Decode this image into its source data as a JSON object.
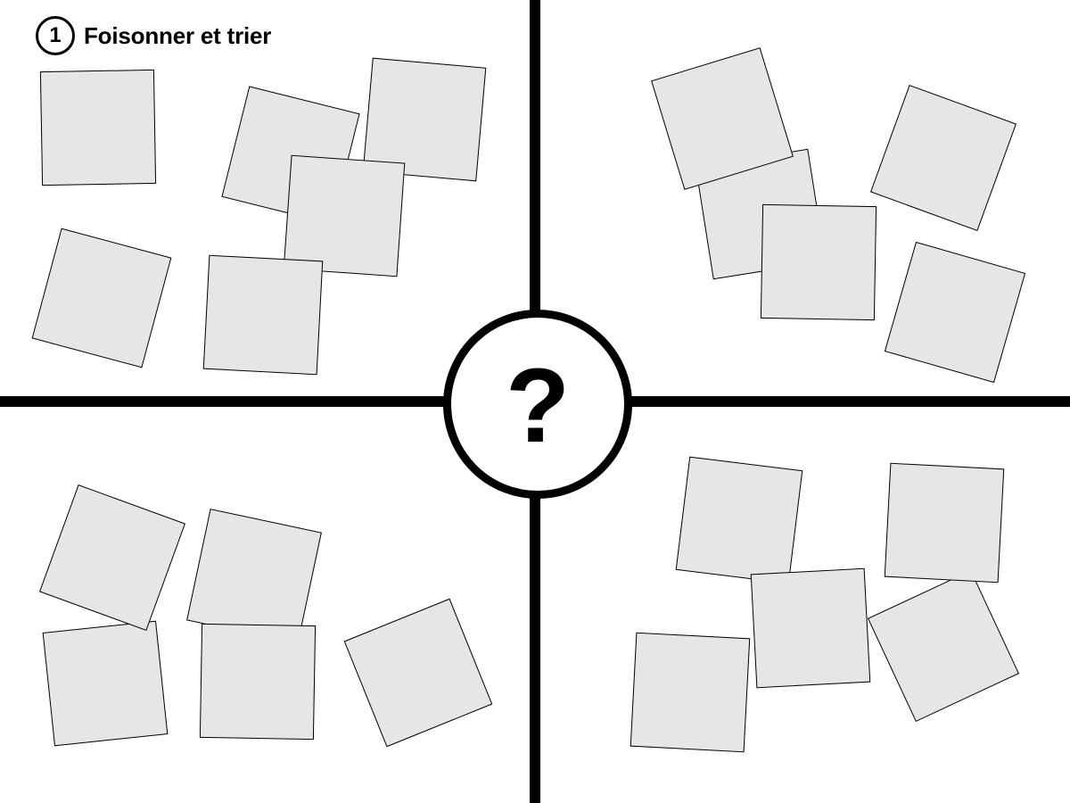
{
  "board": {
    "step_number": "1",
    "step_title": "Foisonner et trier",
    "center_symbol": "?"
  },
  "colors": {
    "note_fill": "#e6e6e6",
    "line": "#000000",
    "background": "#ffffff"
  },
  "quadrants": [
    {
      "id": "top-left",
      "note_count": 6
    },
    {
      "id": "top-right",
      "note_count": 5
    },
    {
      "id": "bottom-left",
      "note_count": 5
    },
    {
      "id": "bottom-right",
      "note_count": 5
    }
  ]
}
